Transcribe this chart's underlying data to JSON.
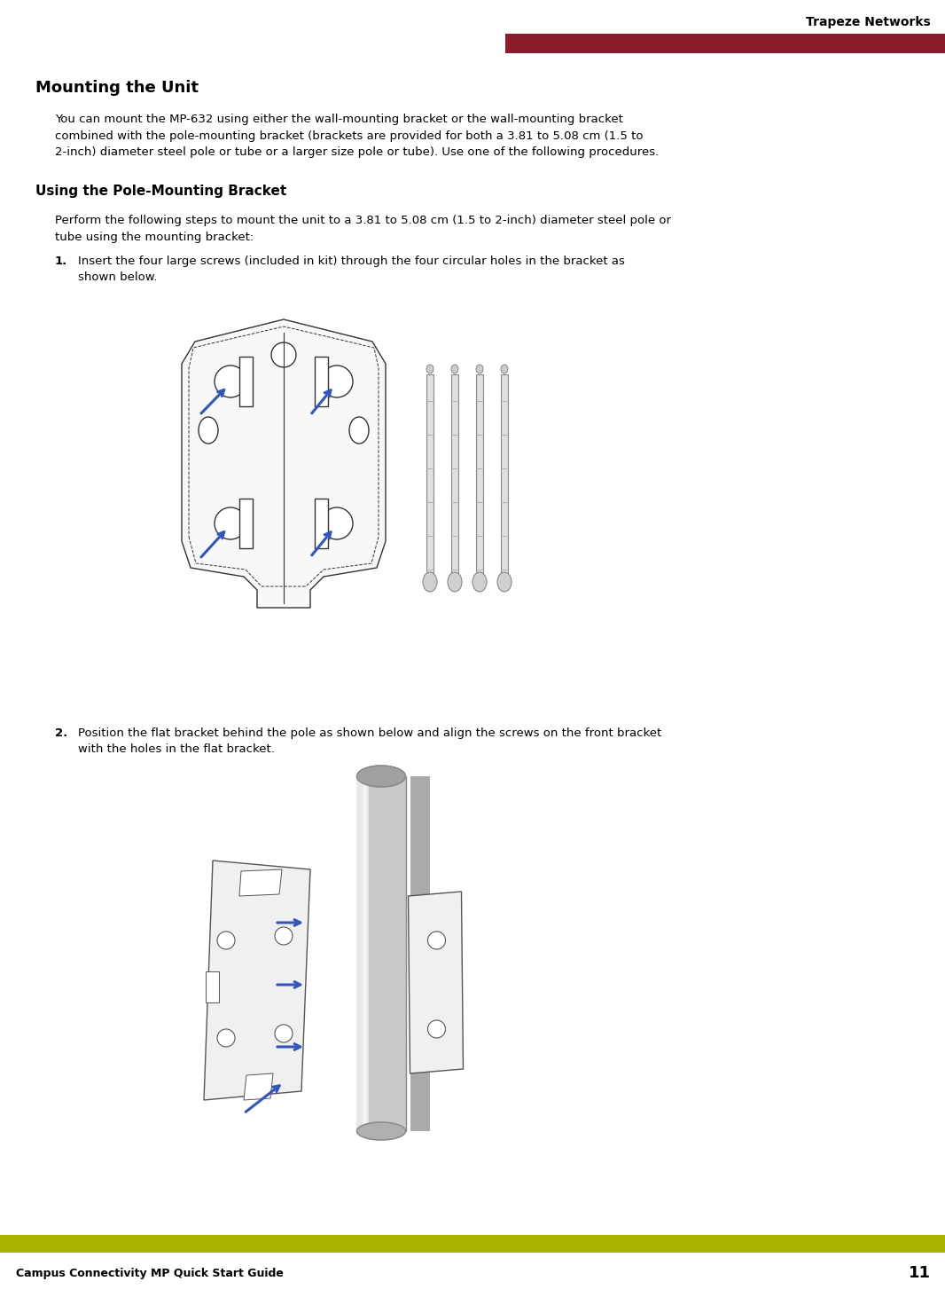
{
  "bg_color": "#ffffff",
  "header_bar_color": "#8b1a2a",
  "header_text": "Trapeze Networks",
  "footer_bar_color": "#a8b400",
  "footer_left_text": "Campus Connectivity MP Quick Start Guide",
  "footer_right_text": "11",
  "title_main": "Mounting the Unit",
  "body_text_1": "You can mount the MP-632 using either the wall-mounting bracket or the wall-mounting bracket\ncombined with the pole-mounting bracket (brackets are provided for both a 3.81 to 5.08 cm (1.5 to\n2-inch) diameter steel pole or tube or a larger size pole or tube). Use one of the following procedures.",
  "section_title": "Using the Pole-Mounting Bracket",
  "body_text_2": "Perform the following steps to mount the unit to a 3.81 to 5.08 cm (1.5 to 2-inch) diameter steel pole or\ntube using the mounting bracket:",
  "step1_text": "Insert the four large screws (included in kit) through the four circular holes in the bracket as\nshown below.",
  "step2_text": "Position the flat bracket behind the pole as shown below and align the screws on the front bracket\nwith the holes in the flat bracket.",
  "font_size_body": 9.5,
  "font_size_title_main": 13,
  "font_size_section": 11,
  "font_size_step": 9.5,
  "font_size_footer": 9,
  "font_size_header": 10
}
